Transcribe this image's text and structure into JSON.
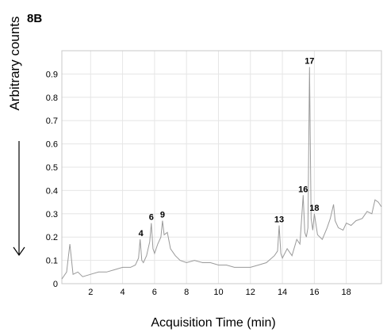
{
  "figure": {
    "panel_label": "8B"
  },
  "chart_data": {
    "type": "line",
    "title": "",
    "xlabel": "Acquisition Time (min)",
    "ylabel": "Arbitrary counts",
    "xlim": [
      0.2,
      20.2
    ],
    "ylim": [
      0,
      1.0
    ],
    "x_ticks": [
      2,
      4,
      6,
      8,
      10,
      12,
      14,
      16,
      18
    ],
    "y_ticks": [
      0,
      0.1,
      0.2,
      0.3,
      0.4,
      0.5,
      0.6,
      0.7,
      0.8,
      0.9
    ],
    "y_tick_labels": [
      "0",
      "0.1",
      "0.2",
      "0.3",
      "0.4",
      "0.5",
      "0.6",
      "0.7",
      "0.8",
      "0.9"
    ],
    "grid": true,
    "line_color": "#9a9a9a",
    "series": [
      {
        "x": [
          0.2,
          0.5,
          0.7,
          0.9,
          1.2,
          1.5,
          2.0,
          2.5,
          3.0,
          3.5,
          4.0,
          4.5,
          4.8,
          5.0,
          5.1,
          5.2,
          5.3,
          5.5,
          5.7,
          5.8,
          5.9,
          6.0,
          6.2,
          6.4,
          6.5,
          6.6,
          6.8,
          7.0,
          7.3,
          7.6,
          8.0,
          8.5,
          9.0,
          9.5,
          10.0,
          10.5,
          11.0,
          11.5,
          12.0,
          12.5,
          13.0,
          13.5,
          13.7,
          13.8,
          13.9,
          14.0,
          14.3,
          14.6,
          14.9,
          15.1,
          15.3,
          15.4,
          15.5,
          15.6,
          15.7,
          15.8,
          15.9,
          16.0,
          16.2,
          16.5,
          16.8,
          17.0,
          17.2,
          17.3,
          17.5,
          17.8,
          18.0,
          18.3,
          18.6,
          19.0,
          19.3,
          19.6,
          19.8,
          20.0,
          20.2
        ],
        "y": [
          0.02,
          0.05,
          0.17,
          0.04,
          0.05,
          0.03,
          0.04,
          0.05,
          0.05,
          0.06,
          0.07,
          0.07,
          0.08,
          0.11,
          0.19,
          0.1,
          0.09,
          0.12,
          0.18,
          0.26,
          0.15,
          0.13,
          0.17,
          0.2,
          0.27,
          0.21,
          0.22,
          0.15,
          0.12,
          0.1,
          0.09,
          0.1,
          0.09,
          0.09,
          0.08,
          0.08,
          0.07,
          0.07,
          0.07,
          0.08,
          0.09,
          0.12,
          0.14,
          0.25,
          0.13,
          0.11,
          0.15,
          0.12,
          0.19,
          0.17,
          0.38,
          0.22,
          0.2,
          0.24,
          0.93,
          0.28,
          0.23,
          0.3,
          0.21,
          0.19,
          0.24,
          0.28,
          0.34,
          0.27,
          0.24,
          0.23,
          0.26,
          0.25,
          0.27,
          0.28,
          0.31,
          0.3,
          0.36,
          0.35,
          0.33
        ]
      }
    ],
    "annotations": [
      {
        "label": "4",
        "x": 5.15,
        "y": 0.19
      },
      {
        "label": "6",
        "x": 5.8,
        "y": 0.26
      },
      {
        "label": "9",
        "x": 6.5,
        "y": 0.27
      },
      {
        "label": "13",
        "x": 13.8,
        "y": 0.25
      },
      {
        "label": "16",
        "x": 15.3,
        "y": 0.38
      },
      {
        "label": "17",
        "x": 15.7,
        "y": 0.93
      },
      {
        "label": "18",
        "x": 16.0,
        "y": 0.3
      }
    ]
  }
}
